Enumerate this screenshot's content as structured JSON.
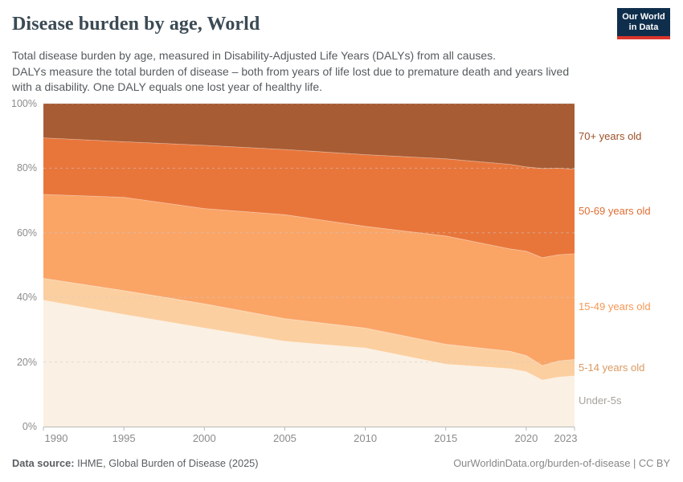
{
  "header": {
    "title": "Disease burden by age, World",
    "subtitle_line1": "Total disease burden by age, measured in Disability-Adjusted Life Years (DALYs) from all causes.",
    "subtitle_line2": "DALYs measure the total burden of disease – both from years of life lost due to premature death and years lived with a disability. One DALY equals one lost year of healthy life."
  },
  "logo": {
    "line1": "Our World",
    "line2": "in Data",
    "bg": "#0F2E4C",
    "accent": "#DC352B"
  },
  "chart_data": {
    "type": "area",
    "stacked": true,
    "unit": "%",
    "title": "Disease burden by age, World",
    "x": [
      1990,
      1995,
      2000,
      2005,
      2010,
      2015,
      2019,
      2020,
      2021,
      2022,
      2023
    ],
    "series": [
      {
        "name": "Under-5s",
        "color": "#FAF0E3",
        "label_color": "#A7A29C",
        "values": [
          39.1,
          34.7,
          30.5,
          26.4,
          24.3,
          19.3,
          17.9,
          17.0,
          14.4,
          15.3,
          15.7
        ]
      },
      {
        "name": "5-14 years old",
        "color": "#FCCFA0",
        "label_color": "#D99A62",
        "values": [
          6.8,
          7.4,
          7.5,
          7.0,
          6.2,
          6.2,
          5.4,
          5.0,
          4.5,
          5.0,
          5.1
        ]
      },
      {
        "name": "15-49 years old",
        "color": "#FAA466",
        "label_color": "#F79855",
        "values": [
          26.0,
          28.9,
          29.5,
          32.2,
          31.5,
          33.5,
          31.7,
          32.3,
          33.4,
          32.9,
          32.7
        ]
      },
      {
        "name": "50-69 years old",
        "color": "#E8763B",
        "label_color": "#E06E33",
        "values": [
          17.5,
          17.2,
          19.6,
          20.2,
          22.2,
          23.9,
          26.2,
          26.1,
          27.6,
          26.8,
          26.2
        ]
      },
      {
        "name": "70+ years old",
        "color": "#A85C33",
        "label_color": "#9D5027",
        "values": [
          10.6,
          11.8,
          12.9,
          14.2,
          15.8,
          17.1,
          18.8,
          19.6,
          20.1,
          20.0,
          20.3
        ]
      }
    ],
    "xticks": [
      1990,
      1995,
      2000,
      2005,
      2010,
      2015,
      2020,
      2023
    ],
    "yticks": [
      0,
      20,
      40,
      60,
      80,
      100
    ],
    "ylim": [
      0,
      100
    ],
    "grid": "dashed horizontal at 20/40/60/80/100"
  },
  "footer": {
    "source_label": "Data source:",
    "source_text": " IHME, Global Burden of Disease (2025)",
    "credit": "OurWorldinData.org/burden-of-disease | CC BY"
  }
}
